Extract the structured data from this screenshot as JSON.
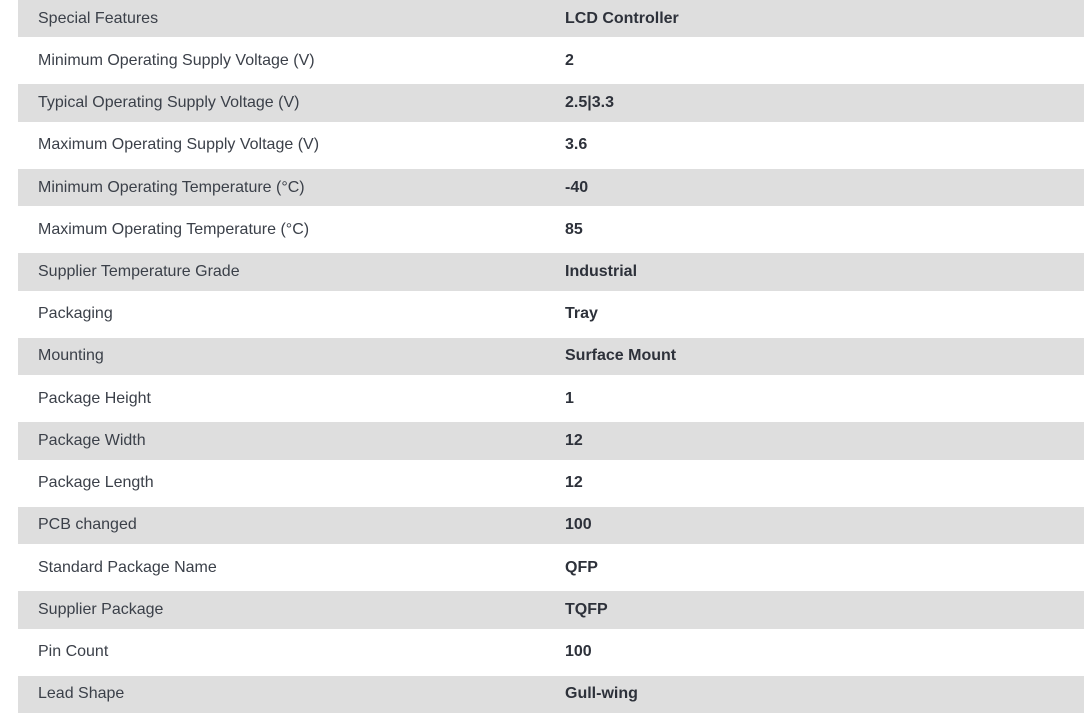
{
  "table": {
    "name": "product-specifications",
    "shaded_row_color": "#dedede",
    "label_text_color": "#3b4049",
    "value_text_color": "#2d313a",
    "rows": [
      {
        "label": "Special Features",
        "value": "LCD Controller",
        "shaded": true
      },
      {
        "label": "Minimum Operating Supply Voltage (V)",
        "value": "2",
        "shaded": false
      },
      {
        "label": "Typical Operating Supply Voltage (V)",
        "value": "2.5|3.3",
        "shaded": true
      },
      {
        "label": "Maximum Operating Supply Voltage (V)",
        "value": "3.6",
        "shaded": false
      },
      {
        "label": "Minimum Operating Temperature (°C)",
        "value": "-40",
        "shaded": true
      },
      {
        "label": "Maximum Operating Temperature (°C)",
        "value": "85",
        "shaded": false
      },
      {
        "label": "Supplier Temperature Grade",
        "value": "Industrial",
        "shaded": true
      },
      {
        "label": "Packaging",
        "value": "Tray",
        "shaded": false
      },
      {
        "label": "Mounting",
        "value": "Surface Mount",
        "shaded": true
      },
      {
        "label": "Package Height",
        "value": "1",
        "shaded": false
      },
      {
        "label": "Package Width",
        "value": "12",
        "shaded": true
      },
      {
        "label": "Package Length",
        "value": "12",
        "shaded": false
      },
      {
        "label": "PCB changed",
        "value": "100",
        "shaded": true
      },
      {
        "label": "Standard Package Name",
        "value": "QFP",
        "shaded": false
      },
      {
        "label": "Supplier Package",
        "value": "TQFP",
        "shaded": true
      },
      {
        "label": "Pin Count",
        "value": "100",
        "shaded": false
      },
      {
        "label": "Lead Shape",
        "value": "Gull-wing",
        "shaded": true
      }
    ]
  }
}
